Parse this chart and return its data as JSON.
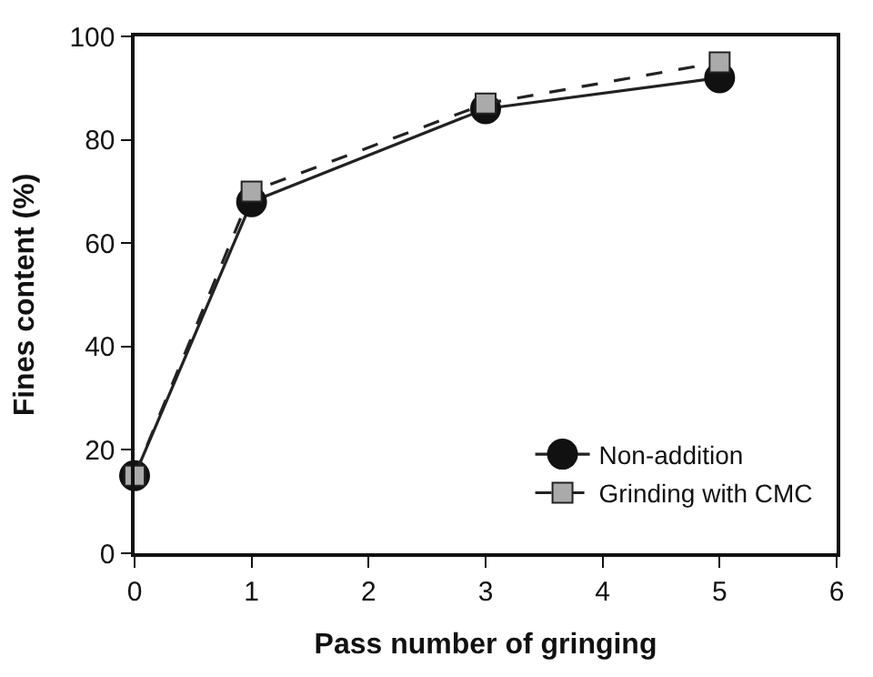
{
  "chart_data": {
    "type": "line",
    "xlabel": "Pass number of gringing",
    "ylabel": "Fines content (%)",
    "x": [
      0,
      1,
      3,
      5
    ],
    "series": [
      {
        "name": "Non-addition",
        "color": "#111111",
        "values": [
          15,
          68,
          86,
          92
        ],
        "marker": "circle",
        "line_style": "solid"
      },
      {
        "name": "Grinding with CMC",
        "color": "#aaaaaa",
        "values": [
          15,
          70,
          87,
          95
        ],
        "marker": "square",
        "line_style": "dashed"
      }
    ],
    "xlim": [
      0,
      6
    ],
    "xticks": [
      0,
      1,
      2,
      3,
      4,
      5,
      6
    ],
    "ylim": [
      0,
      100
    ],
    "yticks": [
      0,
      20,
      40,
      60,
      80,
      100
    ],
    "legend": "bottom right"
  }
}
